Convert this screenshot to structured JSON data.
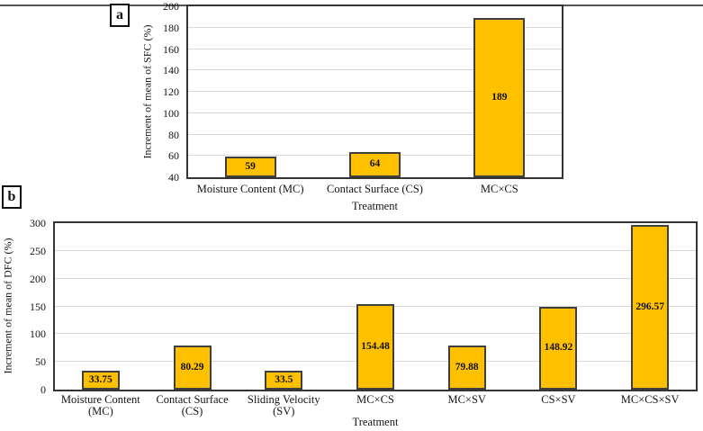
{
  "figure": {
    "panel_labels": [
      "a",
      "b"
    ]
  },
  "chart_data": [
    {
      "type": "bar",
      "panel_label": "a",
      "categories": [
        "Moisture Content (MC)",
        "Contact Surface (CS)",
        "MC×CS"
      ],
      "values": [
        59,
        64,
        189
      ],
      "data_labels": [
        "59",
        "64",
        "189"
      ],
      "xlabel": "Treatment",
      "ylabel": "Increment of mean of SFC (%)",
      "ylim": [
        40,
        200
      ],
      "ytick_step": 20,
      "grid": "horizontal-light",
      "legend": "none",
      "bar_fill": "#FFC000",
      "bar_border": "#3F3F3F"
    },
    {
      "type": "bar",
      "panel_label": "b",
      "categories": [
        "Moisture Content\n(MC)",
        "Contact Surface\n(CS)",
        "Sliding Velocity\n(SV)",
        "MC×CS",
        "MC×SV",
        "CS×SV",
        "MC×CS×SV"
      ],
      "values": [
        33.75,
        80.29,
        33.5,
        154.48,
        79.88,
        148.92,
        296.57
      ],
      "data_labels": [
        "33.75",
        "80.29",
        "33.5",
        "154.48",
        "79.88",
        "148.92",
        "296.57"
      ],
      "xlabel": "Treatment",
      "ylabel": "Increment of mean of DFC (%)",
      "ylim": [
        0,
        300
      ],
      "ytick_step": 50,
      "grid": "horizontal-light",
      "legend": "none",
      "bar_fill": "#FFC000",
      "bar_border": "#3F3F3F"
    }
  ],
  "colors": {
    "bar_fill": "#FFC000",
    "bar_border": "#3F3F3F",
    "gridline": "#D9D9D9",
    "plot_border": "#343434",
    "top_rule": "#55565A",
    "text": "#141414"
  }
}
